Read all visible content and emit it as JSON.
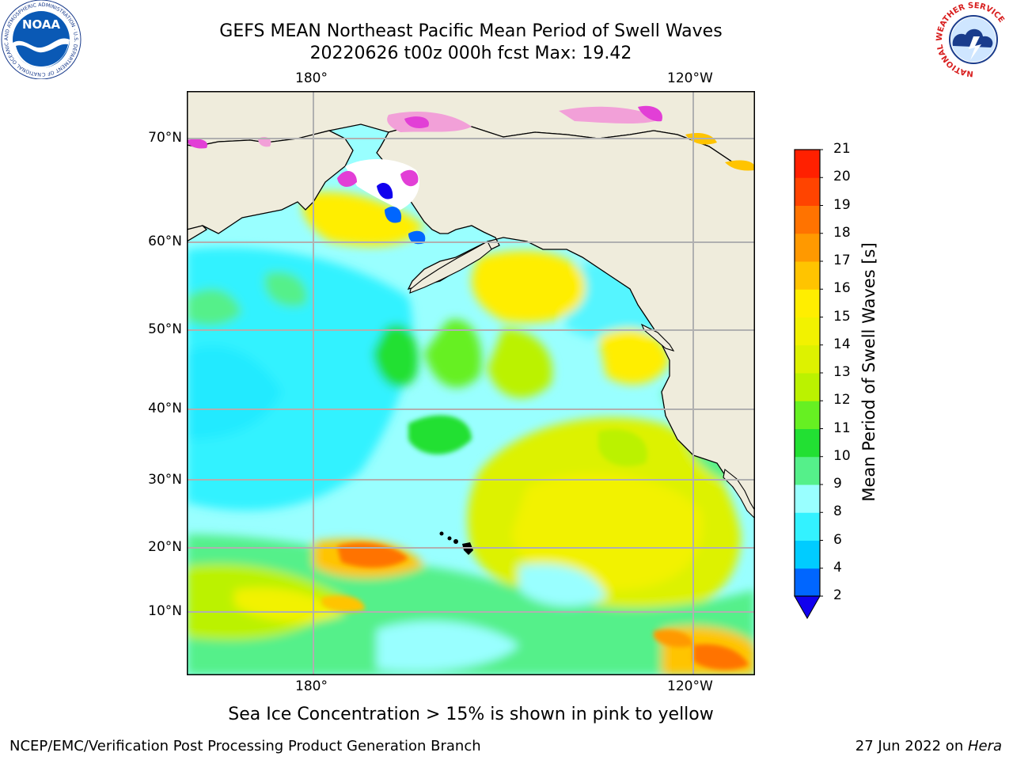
{
  "header": {
    "title_line1": "GEFS MEAN Northeast Pacific Mean Period of Swell Waves",
    "title_line2": "20220626 t00z 000h fcst   Max: 19.42"
  },
  "map": {
    "lon_labels": [
      "180°",
      "120°W"
    ],
    "lat_labels": [
      "70°N",
      "60°N",
      "50°N",
      "40°N",
      "30°N",
      "20°N",
      "10°N"
    ],
    "colors": {
      "land": "#efecdc",
      "ice_white": "#ffffff",
      "ice_pink": "#f2a0d8",
      "ice_magenta": "#e23fd6",
      "gridline": "#b0b0b0",
      "coast": "#000000"
    }
  },
  "colorbar": {
    "title": "Mean Period of Swell Waves [s]",
    "ticks": [
      "2",
      "4",
      "6",
      "8",
      "9",
      "10",
      "11",
      "12",
      "13",
      "14",
      "15",
      "16",
      "17",
      "18",
      "19",
      "20",
      "21"
    ],
    "colors": [
      "#0066ff",
      "#00ccff",
      "#33f2ff",
      "#99ffff",
      "#55f08a",
      "#22e033",
      "#66f022",
      "#bbf200",
      "#ddf200",
      "#f2f200",
      "#ffee00",
      "#ffc400",
      "#ff9900",
      "#ff7300",
      "#ff4400",
      "#ff2000"
    ],
    "under_color": "#1100ee"
  },
  "caption": "Sea Ice Concentration > 15% is shown in pink to yellow",
  "footer": {
    "left": "NCEP/EMC/Verification Post Processing Product Generation Branch",
    "right_prefix": "27 Jun 2022 on ",
    "right_italic": "Hera"
  },
  "logos": {
    "noaa_text": "NOAA",
    "noaa_ring": "NATIONAL OCEANIC AND ATMOSPHERIC ADMINISTRATION · U.S. DEPARTMENT OF COMMERCE",
    "nws_ring": "NATIONAL WEATHER SERVICE"
  }
}
